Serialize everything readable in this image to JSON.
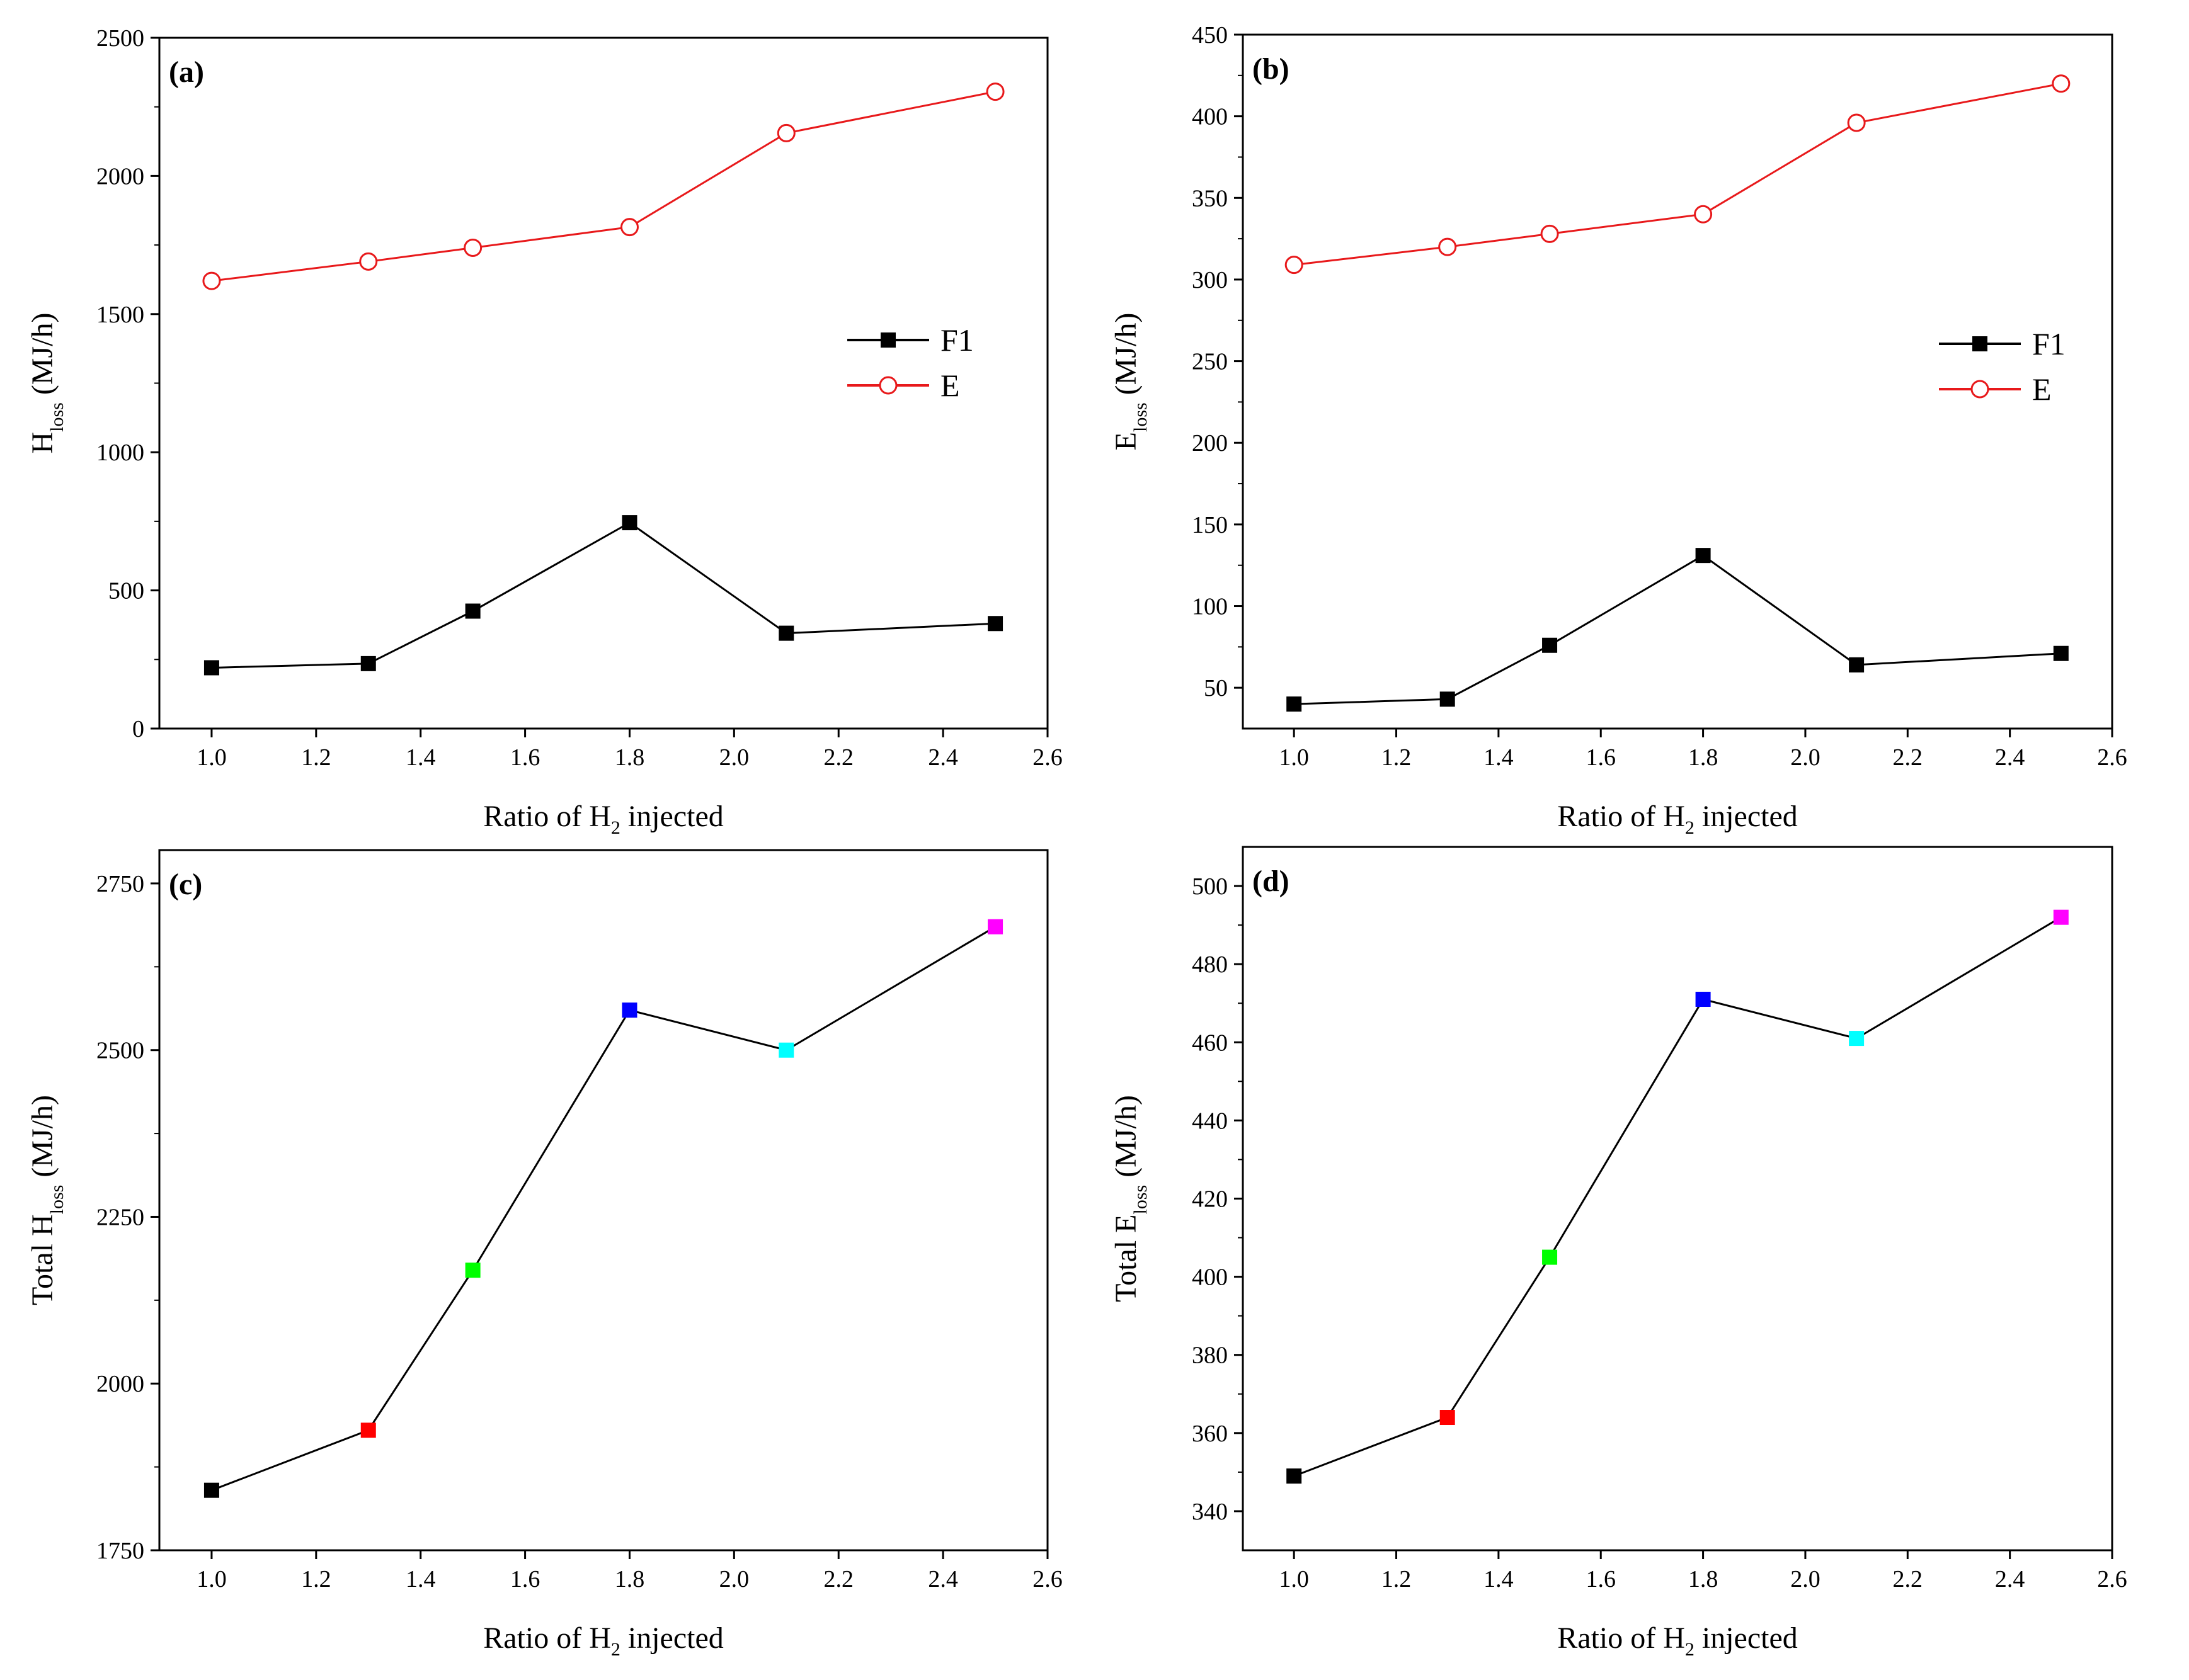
{
  "chart_data": [
    {
      "id": "a",
      "type": "line",
      "panel_label": "(a)",
      "xlabel": {
        "prefix": "Ratio of H",
        "sub": "2",
        "suffix": " injected"
      },
      "ylabel": {
        "prefix": "H",
        "sub": "loss",
        "suffix": " (MJ/h)"
      },
      "xlim": [
        0.9,
        2.6
      ],
      "ylim": [
        0,
        2500
      ],
      "xticks": [
        "1.0",
        "1.2",
        "1.4",
        "1.6",
        "1.8",
        "2.0",
        "2.2",
        "2.4",
        "2.6"
      ],
      "yticks": [
        "0",
        "500",
        "1000",
        "1500",
        "2000",
        "2500"
      ],
      "x": [
        1.0,
        1.3,
        1.5,
        1.8,
        2.1,
        2.5
      ],
      "legend_position": "middle-right",
      "series": [
        {
          "name": "F1",
          "marker": "filled-square",
          "color": "#000000",
          "values": [
            220,
            235,
            425,
            745,
            345,
            380
          ]
        },
        {
          "name": "E",
          "marker": "open-circle",
          "color": "#e8191b",
          "values": [
            1620,
            1690,
            1740,
            1815,
            2155,
            2305
          ]
        }
      ]
    },
    {
      "id": "b",
      "type": "line",
      "panel_label": "(b)",
      "xlabel": {
        "prefix": "Ratio of H",
        "sub": "2",
        "suffix": " injected"
      },
      "ylabel": {
        "prefix": "E",
        "sub": "loss",
        "suffix": " (MJ/h)"
      },
      "xlim": [
        0.9,
        2.6
      ],
      "ylim": [
        25,
        450
      ],
      "xticks": [
        "1.0",
        "1.2",
        "1.4",
        "1.6",
        "1.8",
        "2.0",
        "2.2",
        "2.4",
        "2.6"
      ],
      "yticks": [
        "50",
        "100",
        "150",
        "200",
        "250",
        "300",
        "350",
        "400",
        "450"
      ],
      "x": [
        1.0,
        1.3,
        1.5,
        1.8,
        2.1,
        2.5
      ],
      "legend_position": "middle-right",
      "series": [
        {
          "name": "F1",
          "marker": "filled-square",
          "color": "#000000",
          "values": [
            40,
            43,
            76,
            131,
            64,
            71
          ]
        },
        {
          "name": "E",
          "marker": "open-circle",
          "color": "#e8191b",
          "values": [
            309,
            320,
            328,
            340,
            396,
            420
          ]
        }
      ]
    },
    {
      "id": "c",
      "type": "line",
      "panel_label": "(c)",
      "xlabel": {
        "prefix": "Ratio of H",
        "sub": "2",
        "suffix": " injected"
      },
      "ylabel": {
        "prefix": "Total H",
        "sub": "loss",
        "suffix": " (MJ/h)"
      },
      "xlim": [
        0.9,
        2.6
      ],
      "ylim": [
        1750,
        2800
      ],
      "xticks": [
        "1.0",
        "1.2",
        "1.4",
        "1.6",
        "1.8",
        "2.0",
        "2.2",
        "2.4",
        "2.6"
      ],
      "yticks": [
        "1750",
        "2000",
        "2250",
        "2500",
        "2750"
      ],
      "x": [
        1.0,
        1.3,
        1.5,
        1.8,
        2.1,
        2.5
      ],
      "point_colors": [
        "#000000",
        "#ff0000",
        "#00ff00",
        "#0000ff",
        "#00ffff",
        "#ff00ff"
      ],
      "series": [
        {
          "name": "Total Hloss",
          "marker": "filled-square",
          "color": "#000000",
          "values": [
            1840,
            1930,
            2170,
            2560,
            2500,
            2685
          ]
        }
      ]
    },
    {
      "id": "d",
      "type": "line",
      "panel_label": "(d)",
      "xlabel": {
        "prefix": "Ratio of H",
        "sub": "2",
        "suffix": " injected"
      },
      "ylabel": {
        "prefix": "Total E",
        "sub": "loss",
        "suffix": " (MJ/h)"
      },
      "xlim": [
        0.9,
        2.6
      ],
      "ylim": [
        330,
        510
      ],
      "xticks": [
        "1.0",
        "1.2",
        "1.4",
        "1.6",
        "1.8",
        "2.0",
        "2.2",
        "2.4",
        "2.6"
      ],
      "yticks": [
        "340",
        "360",
        "380",
        "400",
        "420",
        "440",
        "460",
        "480",
        "500"
      ],
      "x": [
        1.0,
        1.3,
        1.5,
        1.8,
        2.1,
        2.5
      ],
      "point_colors": [
        "#000000",
        "#ff0000",
        "#00ff00",
        "#0000ff",
        "#00ffff",
        "#ff00ff"
      ],
      "series": [
        {
          "name": "Total Eloss",
          "marker": "filled-square",
          "color": "#000000",
          "values": [
            349,
            364,
            405,
            471,
            461,
            492
          ]
        }
      ]
    }
  ]
}
